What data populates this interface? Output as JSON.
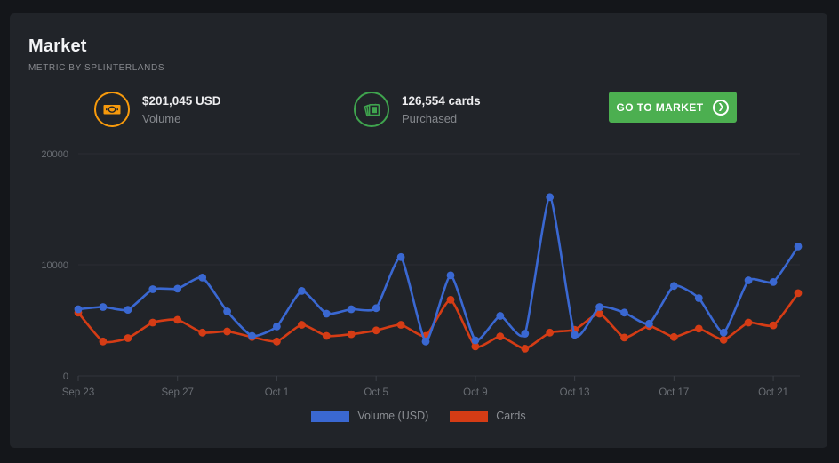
{
  "header": {
    "title": "Market",
    "subtitle": "METRIC BY SPLINTERLANDS"
  },
  "stats": [
    {
      "icon": "money-bill-icon",
      "value": "$201,045 USD",
      "label": "Volume",
      "accent": "#f79a0c"
    },
    {
      "icon": "cards-icon",
      "value": "126,554 cards",
      "label": "Purchased",
      "accent": "#3fa44e"
    }
  ],
  "cta": {
    "label": "GO TO MARKET",
    "color": "#4caf50"
  },
  "colors": {
    "page_bg": "#14161a",
    "card_bg": "#212429",
    "grid": "#2a2d33",
    "axis": "#31353c",
    "tick": "#3a3e45",
    "axis_text": "#696d73"
  },
  "chart_data": {
    "type": "line",
    "title": "Market volume and cards purchased per day",
    "x": [
      "Sep 23",
      "Sep 24",
      "Sep 25",
      "Sep 26",
      "Sep 27",
      "Sep 28",
      "Sep 29",
      "Sep 30",
      "Oct 1",
      "Oct 2",
      "Oct 3",
      "Oct 4",
      "Oct 5",
      "Oct 6",
      "Oct 7",
      "Oct 8",
      "Oct 9",
      "Oct 10",
      "Oct 11",
      "Oct 12",
      "Oct 13",
      "Oct 14",
      "Oct 15",
      "Oct 16",
      "Oct 17",
      "Oct 18",
      "Oct 19",
      "Oct 20",
      "Oct 21",
      "Oct 22"
    ],
    "series": [
      {
        "name": "Volume (USD)",
        "color": "#3a68d2",
        "values": [
          6000,
          6200,
          5950,
          7800,
          7850,
          8850,
          5800,
          3600,
          4450,
          7650,
          5600,
          6000,
          6100,
          10700,
          3100,
          9050,
          3200,
          5400,
          3800,
          16100,
          3700,
          6200,
          5700,
          4700,
          8100,
          7000,
          3900,
          8600,
          8450,
          11650
        ]
      },
      {
        "name": "Cards",
        "color": "#d53c15",
        "values": [
          5700,
          3100,
          3400,
          4800,
          5050,
          3900,
          4000,
          3500,
          3100,
          4600,
          3600,
          3750,
          4100,
          4600,
          3600,
          6850,
          2650,
          3550,
          2450,
          3900,
          4150,
          5600,
          3450,
          4500,
          3500,
          4250,
          3250,
          4800,
          4550,
          7450
        ]
      }
    ],
    "ylim": [
      0,
      20000
    ],
    "yticks": [
      0,
      10000,
      20000
    ],
    "xtick_indices": [
      0,
      4,
      8,
      12,
      16,
      20,
      24,
      28
    ],
    "xtick_labels": [
      "Sep 23",
      "Sep 27",
      "Oct 1",
      "Oct 5",
      "Oct 9",
      "Oct 13",
      "Oct 17",
      "Oct 21"
    ],
    "grid": true,
    "legend_position": "bottom"
  }
}
